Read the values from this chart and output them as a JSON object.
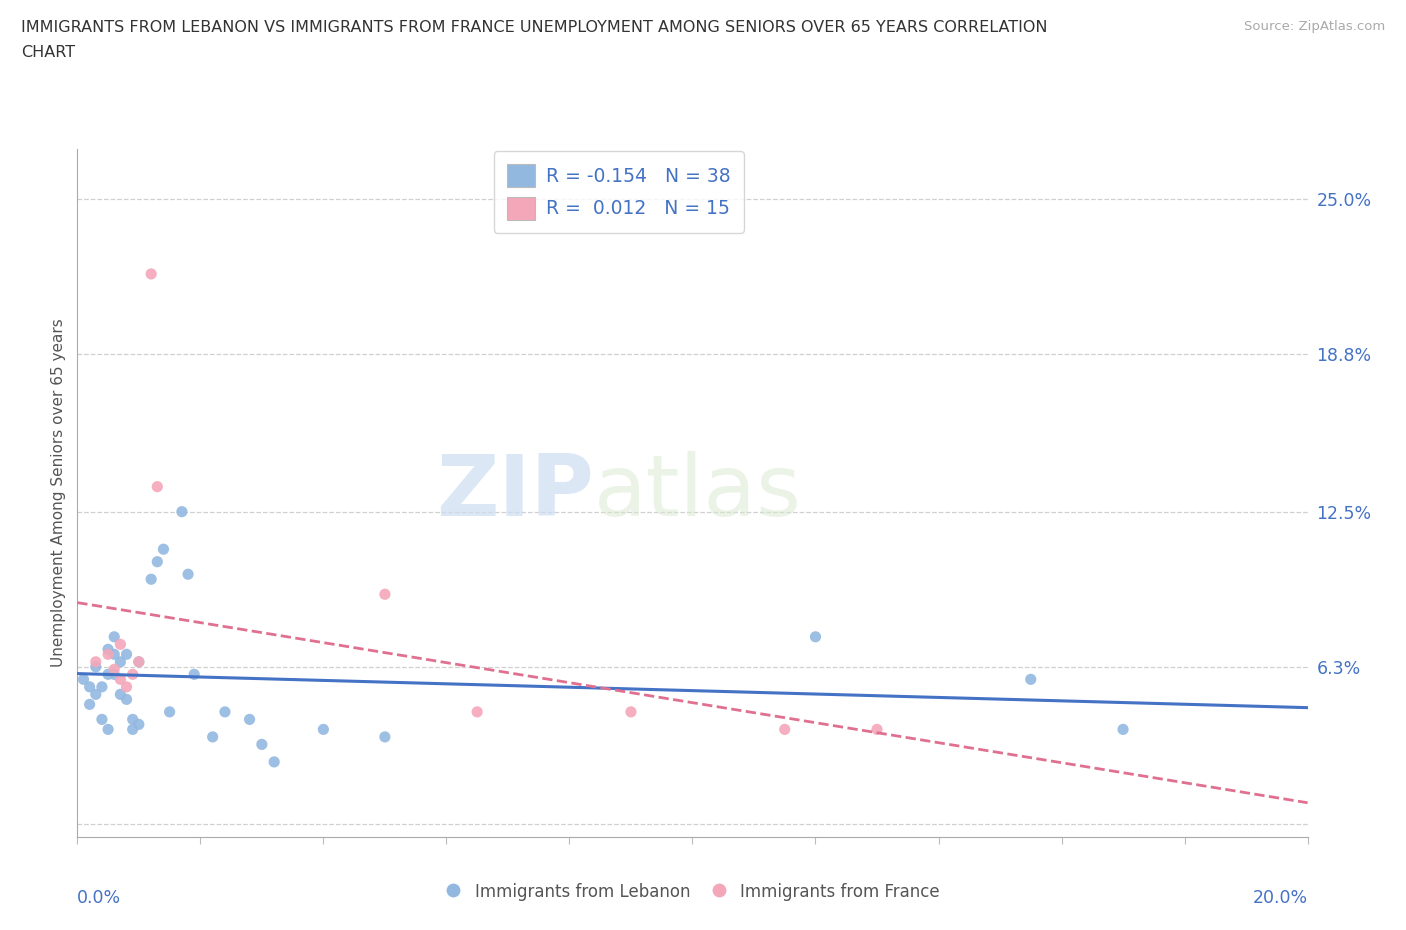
{
  "title_line1": "IMMIGRANTS FROM LEBANON VS IMMIGRANTS FROM FRANCE UNEMPLOYMENT AMONG SENIORS OVER 65 YEARS CORRELATION",
  "title_line2": "CHART",
  "source": "Source: ZipAtlas.com",
  "ylabel": "Unemployment Among Seniors over 65 years",
  "yticks": [
    0.0,
    0.063,
    0.125,
    0.188,
    0.25
  ],
  "ytick_labels": [
    "",
    "6.3%",
    "12.5%",
    "18.8%",
    "25.0%"
  ],
  "xlim": [
    0.0,
    0.2
  ],
  "ylim": [
    -0.005,
    0.27
  ],
  "lebanon_R": -0.154,
  "lebanon_N": 38,
  "france_R": 0.012,
  "france_N": 15,
  "lebanon_color": "#93b8e0",
  "france_color": "#f4a7b9",
  "lebanon_line_color": "#4472c4",
  "france_line_color": "#e07090",
  "lebanon_x": [
    0.001,
    0.002,
    0.002,
    0.003,
    0.003,
    0.004,
    0.004,
    0.005,
    0.005,
    0.005,
    0.006,
    0.006,
    0.006,
    0.007,
    0.007,
    0.008,
    0.008,
    0.009,
    0.009,
    0.01,
    0.01,
    0.012,
    0.013,
    0.014,
    0.015,
    0.017,
    0.018,
    0.019,
    0.022,
    0.024,
    0.028,
    0.03,
    0.032,
    0.04,
    0.05,
    0.12,
    0.155,
    0.17
  ],
  "lebanon_y": [
    0.058,
    0.055,
    0.048,
    0.063,
    0.052,
    0.055,
    0.042,
    0.07,
    0.06,
    0.038,
    0.075,
    0.068,
    0.06,
    0.065,
    0.052,
    0.068,
    0.05,
    0.042,
    0.038,
    0.065,
    0.04,
    0.098,
    0.105,
    0.11,
    0.045,
    0.125,
    0.1,
    0.06,
    0.035,
    0.045,
    0.042,
    0.032,
    0.025,
    0.038,
    0.035,
    0.075,
    0.058,
    0.038
  ],
  "france_x": [
    0.003,
    0.005,
    0.006,
    0.007,
    0.007,
    0.008,
    0.009,
    0.01,
    0.012,
    0.013,
    0.05,
    0.065,
    0.09,
    0.115,
    0.13
  ],
  "france_y": [
    0.065,
    0.068,
    0.062,
    0.072,
    0.058,
    0.055,
    0.06,
    0.065,
    0.22,
    0.135,
    0.092,
    0.045,
    0.045,
    0.038,
    0.038
  ],
  "watermark_zip": "ZIP",
  "watermark_atlas": "atlas",
  "background_color": "#ffffff",
  "grid_color": "#d0d0d0",
  "legend_label_leb": "Immigrants from Lebanon",
  "legend_label_fra": "Immigrants from France"
}
